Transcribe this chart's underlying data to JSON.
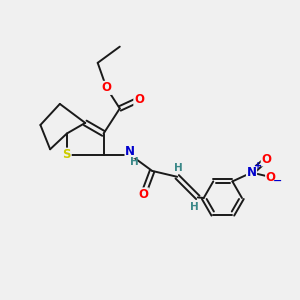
{
  "background_color": "#f0f0f0",
  "bond_color": "#1a1a1a",
  "atom_colors": {
    "O": "#ff0000",
    "N": "#0000cc",
    "S": "#cccc00",
    "H": "#3a8888",
    "plus": "#0000cc",
    "minus": "#0000cc"
  },
  "figsize": [
    3.0,
    3.0
  ],
  "dpi": 100,
  "lw": 1.4,
  "fs": 8.5
}
